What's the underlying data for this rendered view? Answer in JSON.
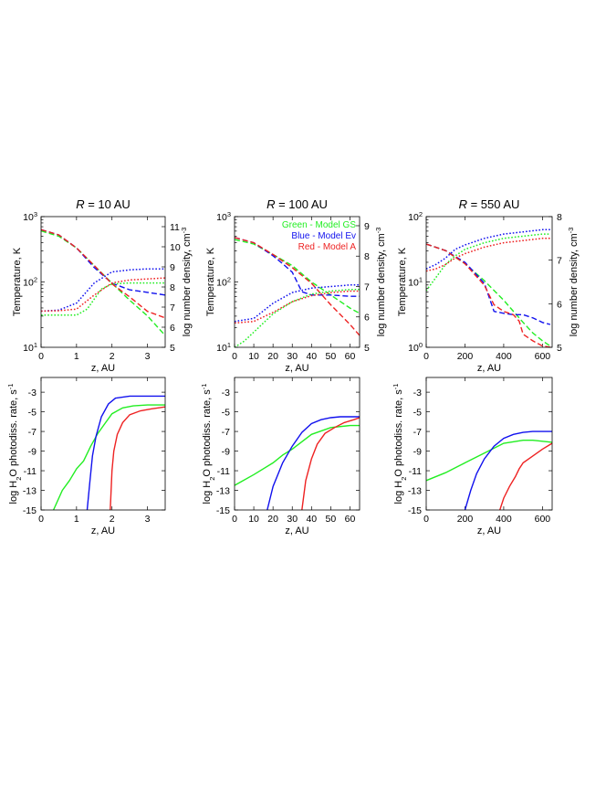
{
  "colors": {
    "green": "#22ee22",
    "blue": "#1111ee",
    "red": "#ee2222"
  },
  "chart_data": [
    {
      "type": "line",
      "panel": "top",
      "title_prefix": "R",
      "title_suffix": " = 10 AU",
      "xlabel": "z, AU",
      "ylabel": "Temperature, K",
      "y2label": "log number density, cm",
      "y2label_sup": "-3",
      "xlim": [
        0,
        3.5
      ],
      "xticks": [
        "0",
        "1",
        "2",
        "3"
      ],
      "ylog": true,
      "ylim_log": [
        1,
        3
      ],
      "ytick_exponents": [
        "1",
        "2",
        "3"
      ],
      "y2lim": [
        5,
        11.5
      ],
      "y2ticks": [
        "5",
        "6",
        "7",
        "8",
        "9",
        "10",
        "11"
      ],
      "series": [
        {
          "name": "Green - Model GS",
          "quantity": "temperature",
          "style": "dashed",
          "color": "green",
          "x": [
            0,
            0.5,
            1,
            1.5,
            2,
            2.5,
            3,
            3.5
          ],
          "y": [
            2.78,
            2.7,
            2.52,
            2.25,
            1.98,
            1.72,
            1.48,
            1.18
          ]
        },
        {
          "name": "Blue - Model Ev",
          "quantity": "temperature",
          "style": "dashed",
          "color": "blue",
          "x": [
            0,
            0.5,
            1,
            1.5,
            2,
            2.5,
            3,
            3.5
          ],
          "y": [
            2.8,
            2.72,
            2.52,
            2.22,
            1.98,
            1.88,
            1.84,
            1.8
          ]
        },
        {
          "name": "Red - Model A",
          "quantity": "temperature",
          "style": "dashed",
          "color": "red",
          "x": [
            0,
            0.5,
            1,
            1.5,
            2,
            2.5,
            3,
            3.5
          ],
          "y": [
            2.8,
            2.72,
            2.52,
            2.25,
            1.97,
            1.77,
            1.55,
            1.45
          ]
        },
        {
          "name": "Green - Model GS",
          "quantity": "density",
          "style": "dotted",
          "color": "green",
          "x": [
            0,
            0.5,
            1,
            1.3,
            1.7,
            2,
            2.5,
            3,
            3.5
          ],
          "y": [
            6.6,
            6.6,
            6.6,
            6.9,
            7.9,
            8.15,
            8.2,
            8.2,
            8.2
          ]
        },
        {
          "name": "Blue - Model Ev",
          "quantity": "density",
          "style": "dotted",
          "color": "blue",
          "x": [
            0,
            0.5,
            1,
            1.5,
            2,
            2.5,
            3,
            3.5
          ],
          "y": [
            6.8,
            6.85,
            7.2,
            8.2,
            8.75,
            8.85,
            8.9,
            8.9
          ]
        },
        {
          "name": "Red - Model A",
          "quantity": "density",
          "style": "dotted",
          "color": "red",
          "x": [
            0,
            0.5,
            1,
            1.5,
            2,
            2.5,
            3,
            3.5
          ],
          "y": [
            6.8,
            6.82,
            6.9,
            7.6,
            8.2,
            8.35,
            8.4,
            8.45
          ]
        }
      ]
    },
    {
      "type": "line",
      "panel": "top",
      "title_prefix": "R",
      "title_suffix": " = 100 AU",
      "xlabel": "z, AU",
      "ylabel": "Temperature, K",
      "y2label": "log number density, cm",
      "y2label_sup": "-3",
      "xlim": [
        0,
        65
      ],
      "xticks": [
        "0",
        "10",
        "20",
        "30",
        "40",
        "50",
        "60"
      ],
      "ylog": true,
      "ylim_log": [
        1,
        3
      ],
      "ytick_exponents": [
        "1",
        "2",
        "3"
      ],
      "y2lim": [
        5,
        9.3
      ],
      "y2ticks": [
        "5",
        "6",
        "7",
        "8",
        "9"
      ],
      "legend": [
        "Green - Model GS",
        "Blue - Model Ev",
        "Red - Model A"
      ],
      "series": [
        {
          "name": "Green - Model GS",
          "quantity": "temperature",
          "style": "dashed",
          "color": "green",
          "x": [
            0,
            10,
            20,
            30,
            40,
            50,
            60,
            65
          ],
          "y": [
            2.65,
            2.58,
            2.42,
            2.25,
            2.0,
            1.8,
            1.6,
            1.52
          ]
        },
        {
          "name": "Blue - Model Ev",
          "quantity": "temperature",
          "style": "dashed",
          "color": "blue",
          "x": [
            0,
            10,
            20,
            25,
            30,
            35,
            40,
            50,
            60,
            65
          ],
          "y": [
            2.68,
            2.6,
            2.4,
            2.28,
            2.15,
            1.85,
            1.8,
            1.8,
            1.78,
            1.78
          ]
        },
        {
          "name": "Red - Model A",
          "quantity": "temperature",
          "style": "dashed",
          "color": "red",
          "x": [
            0,
            10,
            20,
            30,
            40,
            50,
            60,
            65
          ],
          "y": [
            2.68,
            2.6,
            2.42,
            2.22,
            1.98,
            1.65,
            1.35,
            1.18
          ]
        },
        {
          "name": "Green - Model GS",
          "quantity": "density",
          "style": "dotted",
          "color": "green",
          "x": [
            0,
            5,
            10,
            20,
            30,
            40,
            50,
            60,
            65
          ],
          "y": [
            5.0,
            5.2,
            5.5,
            6.1,
            6.5,
            6.75,
            6.85,
            6.9,
            6.9
          ]
        },
        {
          "name": "Blue - Model Ev",
          "quantity": "density",
          "style": "dotted",
          "color": "blue",
          "x": [
            0,
            10,
            20,
            30,
            40,
            50,
            60,
            65
          ],
          "y": [
            5.85,
            5.95,
            6.45,
            6.8,
            6.95,
            7.0,
            7.05,
            7.05
          ]
        },
        {
          "name": "Red - Model A",
          "quantity": "density",
          "style": "dotted",
          "color": "red",
          "x": [
            0,
            10,
            20,
            30,
            40,
            50,
            60,
            65
          ],
          "y": [
            5.8,
            5.85,
            6.15,
            6.5,
            6.7,
            6.8,
            6.85,
            6.85
          ]
        }
      ]
    },
    {
      "type": "line",
      "panel": "top",
      "title_prefix": "R",
      "title_suffix": " = 550 AU",
      "xlabel": "z, AU",
      "ylabel": "Temperature, K",
      "y2label": "log number density, cm",
      "y2label_sup": "-3",
      "xlim": [
        0,
        650
      ],
      "xticks": [
        "0",
        "200",
        "400",
        "600"
      ],
      "ylog": true,
      "ylim_log": [
        0,
        2
      ],
      "ytick_exponents": [
        "0",
        "1",
        "2"
      ],
      "y2lim": [
        5,
        8
      ],
      "y2ticks": [
        "5",
        "6",
        "7",
        "8"
      ],
      "series": [
        {
          "name": "Green - Model GS",
          "quantity": "temperature",
          "style": "dashed",
          "color": "green",
          "x": [
            0,
            100,
            200,
            300,
            400,
            500,
            550,
            600,
            640
          ],
          "y": [
            1.58,
            1.48,
            1.28,
            1.02,
            0.72,
            0.38,
            0.22,
            0.1,
            0.02
          ]
        },
        {
          "name": "Blue - Model Ev",
          "quantity": "temperature",
          "style": "dashed",
          "color": "blue",
          "x": [
            0,
            100,
            200,
            300,
            350,
            400,
            450,
            500,
            550,
            600,
            640
          ],
          "y": [
            1.58,
            1.48,
            1.3,
            0.98,
            0.55,
            0.52,
            0.5,
            0.5,
            0.45,
            0.38,
            0.35
          ]
        },
        {
          "name": "Red - Model A",
          "quantity": "temperature",
          "style": "dashed",
          "color": "red",
          "x": [
            0,
            100,
            200,
            300,
            350,
            400,
            450,
            480,
            500,
            550,
            600,
            640
          ],
          "y": [
            1.58,
            1.48,
            1.28,
            0.95,
            0.65,
            0.55,
            0.5,
            0.4,
            0.2,
            0.1,
            0.02,
            0.0
          ]
        },
        {
          "name": "Green - Model GS",
          "quantity": "density",
          "style": "dotted",
          "color": "green",
          "x": [
            0,
            50,
            100,
            150,
            200,
            300,
            400,
            500,
            600,
            640
          ],
          "y": [
            6.3,
            6.6,
            6.9,
            7.1,
            7.25,
            7.4,
            7.5,
            7.55,
            7.6,
            7.6
          ]
        },
        {
          "name": "Blue - Model Ev",
          "quantity": "density",
          "style": "dotted",
          "color": "blue",
          "x": [
            0,
            50,
            100,
            150,
            200,
            300,
            400,
            500,
            600,
            640
          ],
          "y": [
            6.8,
            6.9,
            7.05,
            7.25,
            7.35,
            7.5,
            7.6,
            7.65,
            7.7,
            7.7
          ]
        },
        {
          "name": "Red - Model A",
          "quantity": "density",
          "style": "dotted",
          "color": "red",
          "x": [
            0,
            50,
            100,
            150,
            200,
            300,
            400,
            500,
            600,
            640
          ],
          "y": [
            6.75,
            6.8,
            6.9,
            7.05,
            7.15,
            7.3,
            7.4,
            7.45,
            7.5,
            7.5
          ]
        }
      ]
    },
    {
      "type": "line",
      "panel": "bottom",
      "xlabel": "z, AU",
      "ylabel_pre": "log H",
      "ylabel_sub": "2",
      "ylabel_mid": "O photodiss. rate, s",
      "ylabel_sup": "-1",
      "xlim": [
        0,
        3.5
      ],
      "xticks": [
        "0",
        "1",
        "2",
        "3"
      ],
      "ylim": [
        -15,
        -1.5
      ],
      "yticks": [
        "-3",
        "-5",
        "-7",
        "-9",
        "-11",
        "-13",
        "-15"
      ],
      "series": [
        {
          "name": "Green - Model GS",
          "color": "green",
          "x": [
            0.35,
            0.6,
            0.8,
            1.0,
            1.2,
            1.4,
            1.6,
            1.8,
            2.0,
            2.3,
            2.6,
            3.0,
            3.5
          ],
          "y": [
            -15,
            -13,
            -12,
            -10.8,
            -10,
            -8.5,
            -7.2,
            -6.2,
            -5.2,
            -4.6,
            -4.4,
            -4.3,
            -4.3
          ]
        },
        {
          "name": "Blue - Model Ev",
          "color": "blue",
          "x": [
            1.3,
            1.38,
            1.45,
            1.55,
            1.7,
            1.9,
            2.1,
            2.5,
            3.0,
            3.5
          ],
          "y": [
            -15,
            -12,
            -9.5,
            -7.5,
            -5.5,
            -4.2,
            -3.6,
            -3.4,
            -3.4,
            -3.4
          ]
        },
        {
          "name": "Red - Model A",
          "color": "red",
          "x": [
            1.95,
            2.0,
            2.05,
            2.15,
            2.3,
            2.5,
            2.8,
            3.1,
            3.5
          ],
          "y": [
            -15,
            -11,
            -9,
            -7.3,
            -6.1,
            -5.3,
            -4.9,
            -4.7,
            -4.5
          ]
        }
      ]
    },
    {
      "type": "line",
      "panel": "bottom",
      "xlabel": "z, AU",
      "ylabel_pre": "log H",
      "ylabel_sub": "2",
      "ylabel_mid": "O photodiss. rate, s",
      "ylabel_sup": "-1",
      "xlim": [
        0,
        65
      ],
      "xticks": [
        "0",
        "10",
        "20",
        "30",
        "40",
        "50",
        "60"
      ],
      "ylim": [
        -15,
        -1.5
      ],
      "yticks": [
        "-3",
        "-5",
        "-7",
        "-9",
        "-11",
        "-13",
        "-15"
      ],
      "series": [
        {
          "name": "Green - Model GS",
          "color": "green",
          "x": [
            0,
            10,
            20,
            25,
            30,
            40,
            50,
            60,
            65
          ],
          "y": [
            -12.5,
            -11.4,
            -10.2,
            -9.4,
            -8.8,
            -7.3,
            -6.6,
            -6.4,
            -6.4
          ]
        },
        {
          "name": "Blue - Model Ev",
          "color": "blue",
          "x": [
            17,
            20,
            25,
            30,
            35,
            40,
            45,
            50,
            55,
            60,
            65
          ],
          "y": [
            -15,
            -12.6,
            -10.2,
            -8.5,
            -7.1,
            -6.2,
            -5.8,
            -5.6,
            -5.5,
            -5.5,
            -5.5
          ]
        },
        {
          "name": "Red - Model A",
          "color": "red",
          "x": [
            35,
            37,
            40,
            43,
            47,
            52,
            57,
            62,
            65
          ],
          "y": [
            -15,
            -12,
            -9.8,
            -8.3,
            -7.2,
            -6.6,
            -6.1,
            -5.8,
            -5.6
          ]
        }
      ]
    },
    {
      "type": "line",
      "panel": "bottom",
      "xlabel": "z, AU",
      "ylabel_pre": "log H",
      "ylabel_sub": "2",
      "ylabel_mid": "O photodiss. rate, s",
      "ylabel_sup": "-1",
      "xlim": [
        0,
        650
      ],
      "xticks": [
        "0",
        "200",
        "400",
        "600"
      ],
      "ylim": [
        -15,
        -1.5
      ],
      "yticks": [
        "-3",
        "-5",
        "-7",
        "-9",
        "-11",
        "-13",
        "-15"
      ],
      "series": [
        {
          "name": "Green - Model GS",
          "color": "green",
          "x": [
            0,
            100,
            200,
            300,
            400,
            500,
            550,
            600,
            650
          ],
          "y": [
            -12.0,
            -11.2,
            -10.2,
            -9.2,
            -8.2,
            -7.9,
            -7.9,
            -8.0,
            -8.1
          ]
        },
        {
          "name": "Blue - Model Ev",
          "color": "blue",
          "x": [
            200,
            230,
            260,
            300,
            350,
            400,
            450,
            500,
            550,
            600,
            650
          ],
          "y": [
            -15,
            -13,
            -11.3,
            -9.8,
            -8.5,
            -7.7,
            -7.3,
            -7.1,
            -7.0,
            -7.0,
            -7.0
          ]
        },
        {
          "name": "Red - Model A",
          "color": "red",
          "x": [
            380,
            400,
            430,
            460,
            480,
            500,
            550,
            600,
            650
          ],
          "y": [
            -15,
            -13.8,
            -12.6,
            -11.6,
            -10.8,
            -10.2,
            -9.5,
            -8.8,
            -8.2
          ]
        }
      ]
    }
  ]
}
